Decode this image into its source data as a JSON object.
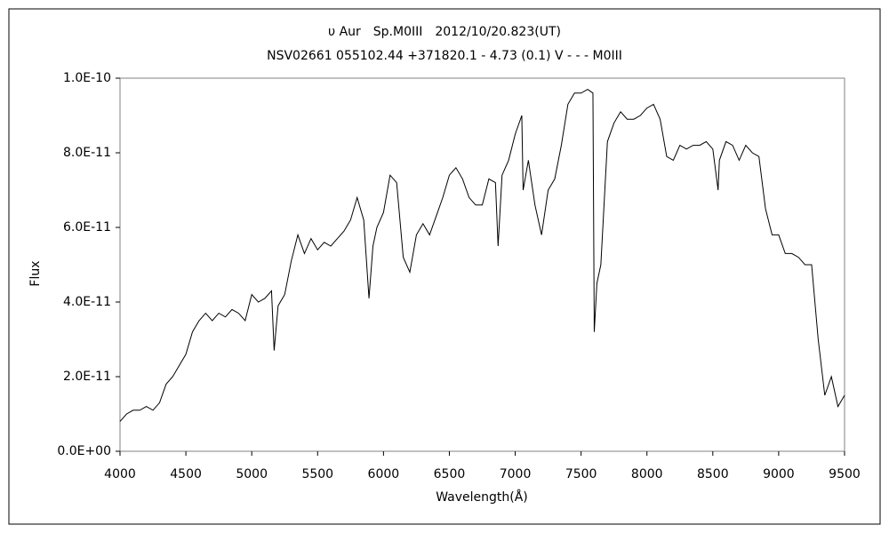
{
  "chart_data": {
    "type": "line",
    "title": "υ Aur　Sp.M0III　2012/10/20.823(UT)",
    "subtitle": "NSV02661 055102.44 +371820.1 - 4.73 (0.1) V - - - M0III",
    "xlabel": "Wavelength(Å)",
    "ylabel": "Flux",
    "x": [
      4000,
      4050,
      4100,
      4150,
      4200,
      4250,
      4300,
      4350,
      4400,
      4450,
      4500,
      4550,
      4600,
      4650,
      4700,
      4750,
      4800,
      4850,
      4900,
      4950,
      5000,
      5050,
      5100,
      5150,
      5170,
      5200,
      5250,
      5300,
      5350,
      5400,
      5450,
      5500,
      5550,
      5600,
      5650,
      5700,
      5750,
      5800,
      5850,
      5890,
      5920,
      5950,
      6000,
      6050,
      6100,
      6150,
      6200,
      6250,
      6300,
      6350,
      6400,
      6450,
      6500,
      6550,
      6600,
      6650,
      6700,
      6750,
      6800,
      6850,
      6870,
      6900,
      6950,
      7000,
      7050,
      7060,
      7100,
      7150,
      7200,
      7250,
      7300,
      7350,
      7400,
      7450,
      7500,
      7550,
      7590,
      7600,
      7620,
      7650,
      7700,
      7750,
      7800,
      7850,
      7900,
      7950,
      8000,
      8050,
      8100,
      8150,
      8200,
      8250,
      8300,
      8350,
      8400,
      8450,
      8500,
      8540,
      8550,
      8600,
      8650,
      8700,
      8750,
      8800,
      8850,
      8900,
      8950,
      9000,
      9050,
      9100,
      9150,
      9200,
      9250,
      9300,
      9350,
      9400,
      9450,
      9500
    ],
    "series": [
      {
        "name": "Flux",
        "color": "#000000",
        "values": [
          8e-12,
          1e-11,
          1.1e-11,
          1.1e-11,
          1.2e-11,
          1.1e-11,
          1.3e-11,
          1.8e-11,
          2e-11,
          2.3e-11,
          2.6e-11,
          3.2e-11,
          3.5e-11,
          3.7e-11,
          3.5e-11,
          3.7e-11,
          3.6e-11,
          3.8e-11,
          3.7e-11,
          3.5e-11,
          4.2e-11,
          4e-11,
          4.1e-11,
          4.3e-11,
          2.7e-11,
          3.9e-11,
          4.2e-11,
          5.1e-11,
          5.8e-11,
          5.3e-11,
          5.7e-11,
          5.4e-11,
          5.6e-11,
          5.5e-11,
          5.7e-11,
          5.9e-11,
          6.2e-11,
          6.8e-11,
          6.2e-11,
          4.1e-11,
          5.5e-11,
          6e-11,
          6.4e-11,
          7.4e-11,
          7.2e-11,
          5.2e-11,
          4.8e-11,
          5.8e-11,
          6.1e-11,
          5.8e-11,
          6.3e-11,
          6.8e-11,
          7.4e-11,
          7.6e-11,
          7.3e-11,
          6.8e-11,
          6.6e-11,
          6.6e-11,
          7.3e-11,
          7.2e-11,
          5.5e-11,
          7.4e-11,
          7.8e-11,
          8.5e-11,
          9e-11,
          7e-11,
          7.8e-11,
          6.6e-11,
          5.8e-11,
          7e-11,
          7.3e-11,
          8.2e-11,
          9.3e-11,
          9.6e-11,
          9.6e-11,
          9.7e-11,
          9.6e-11,
          3.2e-11,
          4.5e-11,
          5e-11,
          8.3e-11,
          8.8e-11,
          9.1e-11,
          8.9e-11,
          8.9e-11,
          9e-11,
          9.2e-11,
          9.3e-11,
          8.9e-11,
          7.9e-11,
          7.8e-11,
          8.2e-11,
          8.1e-11,
          8.2e-11,
          8.2e-11,
          8.3e-11,
          8.1e-11,
          7e-11,
          7.8e-11,
          8.3e-11,
          8.2e-11,
          7.8e-11,
          8.2e-11,
          8e-11,
          7.9e-11,
          6.5e-11,
          5.8e-11,
          5.8e-11,
          5.3e-11,
          5.3e-11,
          5.2e-11,
          5e-11,
          5e-11,
          3e-11,
          1.5e-11,
          2e-11,
          1.2e-11,
          1.5e-11
        ]
      }
    ],
    "xlim": [
      4000,
      9500
    ],
    "xticks": [
      4000,
      4500,
      5000,
      5500,
      6000,
      6500,
      7000,
      7500,
      8000,
      8500,
      9000,
      9500
    ],
    "ylim": [
      0,
      1e-10
    ],
    "yticks": [
      {
        "value": 0,
        "label": "0.0E+00"
      },
      {
        "value": 2e-11,
        "label": "2.0E-11"
      },
      {
        "value": 4e-11,
        "label": "4.0E-11"
      },
      {
        "value": 6e-11,
        "label": "6.0E-11"
      },
      {
        "value": 8e-11,
        "label": "8.0E-11"
      },
      {
        "value": 1e-10,
        "label": "1.0E-10"
      }
    ],
    "grid": false
  }
}
